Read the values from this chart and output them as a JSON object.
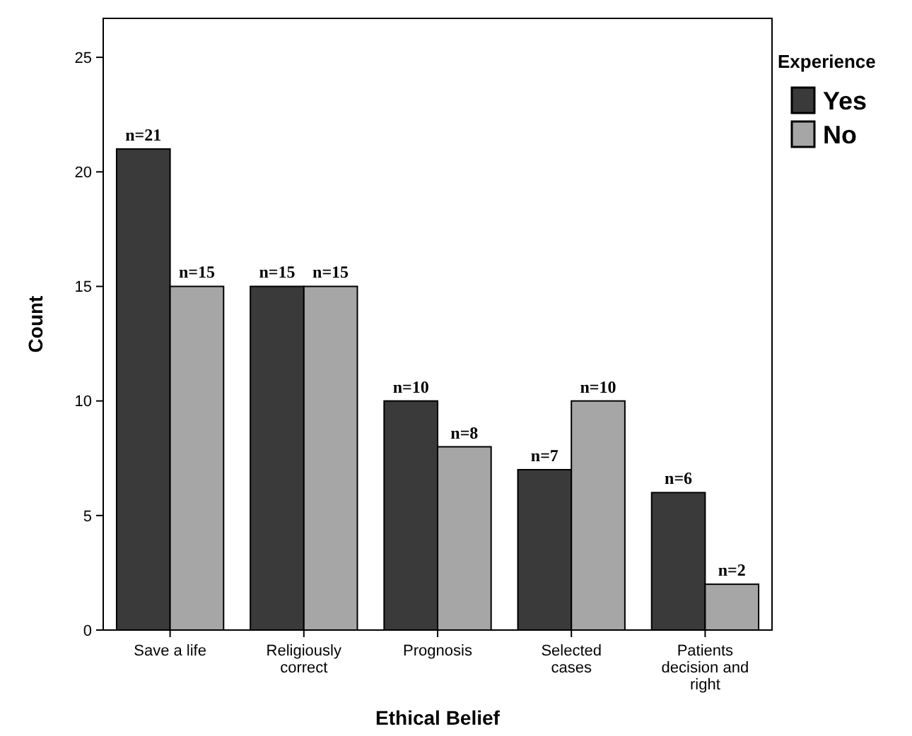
{
  "chart_data": {
    "type": "bar",
    "xlabel": "Ethical Belief",
    "ylabel": "Count",
    "legend_title": "Experience",
    "legend": "right",
    "categories": [
      "Save a life",
      "Religiously correct",
      "Prognosis",
      "Selected cases",
      "Patients decision and right"
    ],
    "series": [
      {
        "name": "Yes",
        "color": "#3a3a3a",
        "values": [
          21,
          15,
          10,
          7,
          6
        ],
        "value_labels": [
          "n=21",
          "n=15",
          "n=10",
          "n=7",
          "n=6"
        ]
      },
      {
        "name": "No",
        "color": "#a6a6a6",
        "values": [
          15,
          15,
          8,
          10,
          2
        ],
        "value_labels": [
          "n=15",
          "n=15",
          "n=8",
          "n=10",
          "n=2"
        ]
      }
    ],
    "ylim": [
      0,
      26.7
    ],
    "yticks": [
      0,
      5,
      10,
      15,
      20,
      25
    ],
    "grid": false
  }
}
